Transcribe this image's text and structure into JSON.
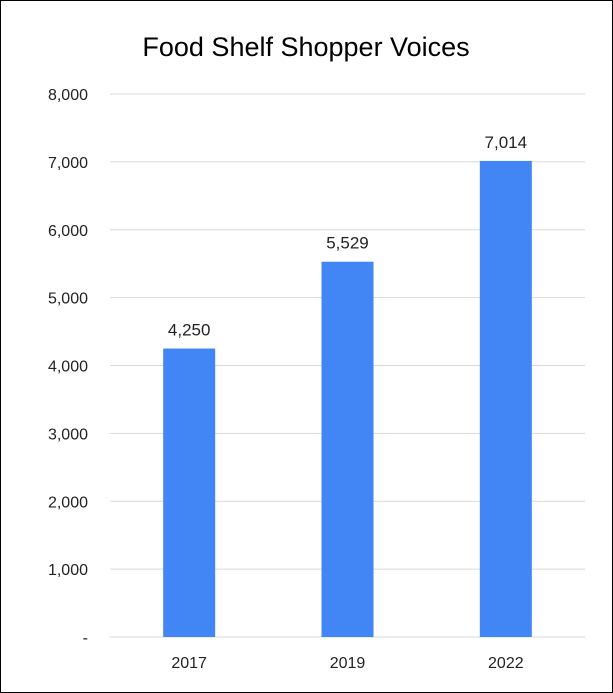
{
  "chart_data": {
    "type": "bar",
    "title": "Food Shelf Shopper Voices",
    "xlabel": "",
    "ylabel": "",
    "categories": [
      "2017",
      "2019",
      "2022"
    ],
    "values": [
      4250,
      5529,
      7014
    ],
    "data_labels": [
      "4,250",
      "5,529",
      "7,014"
    ],
    "ylim": [
      0,
      8000
    ],
    "y_ticks": [
      0,
      1000,
      2000,
      3000,
      4000,
      5000,
      6000,
      7000,
      8000
    ],
    "y_tick_labels": [
      "-",
      "1,000",
      "2,000",
      "3,000",
      "4,000",
      "5,000",
      "6,000",
      "7,000",
      "8,000"
    ],
    "grid": true,
    "legend": "none",
    "colors": {
      "bar": "#4285f4",
      "grid": "#d9d9d9",
      "border": "#000000"
    }
  }
}
